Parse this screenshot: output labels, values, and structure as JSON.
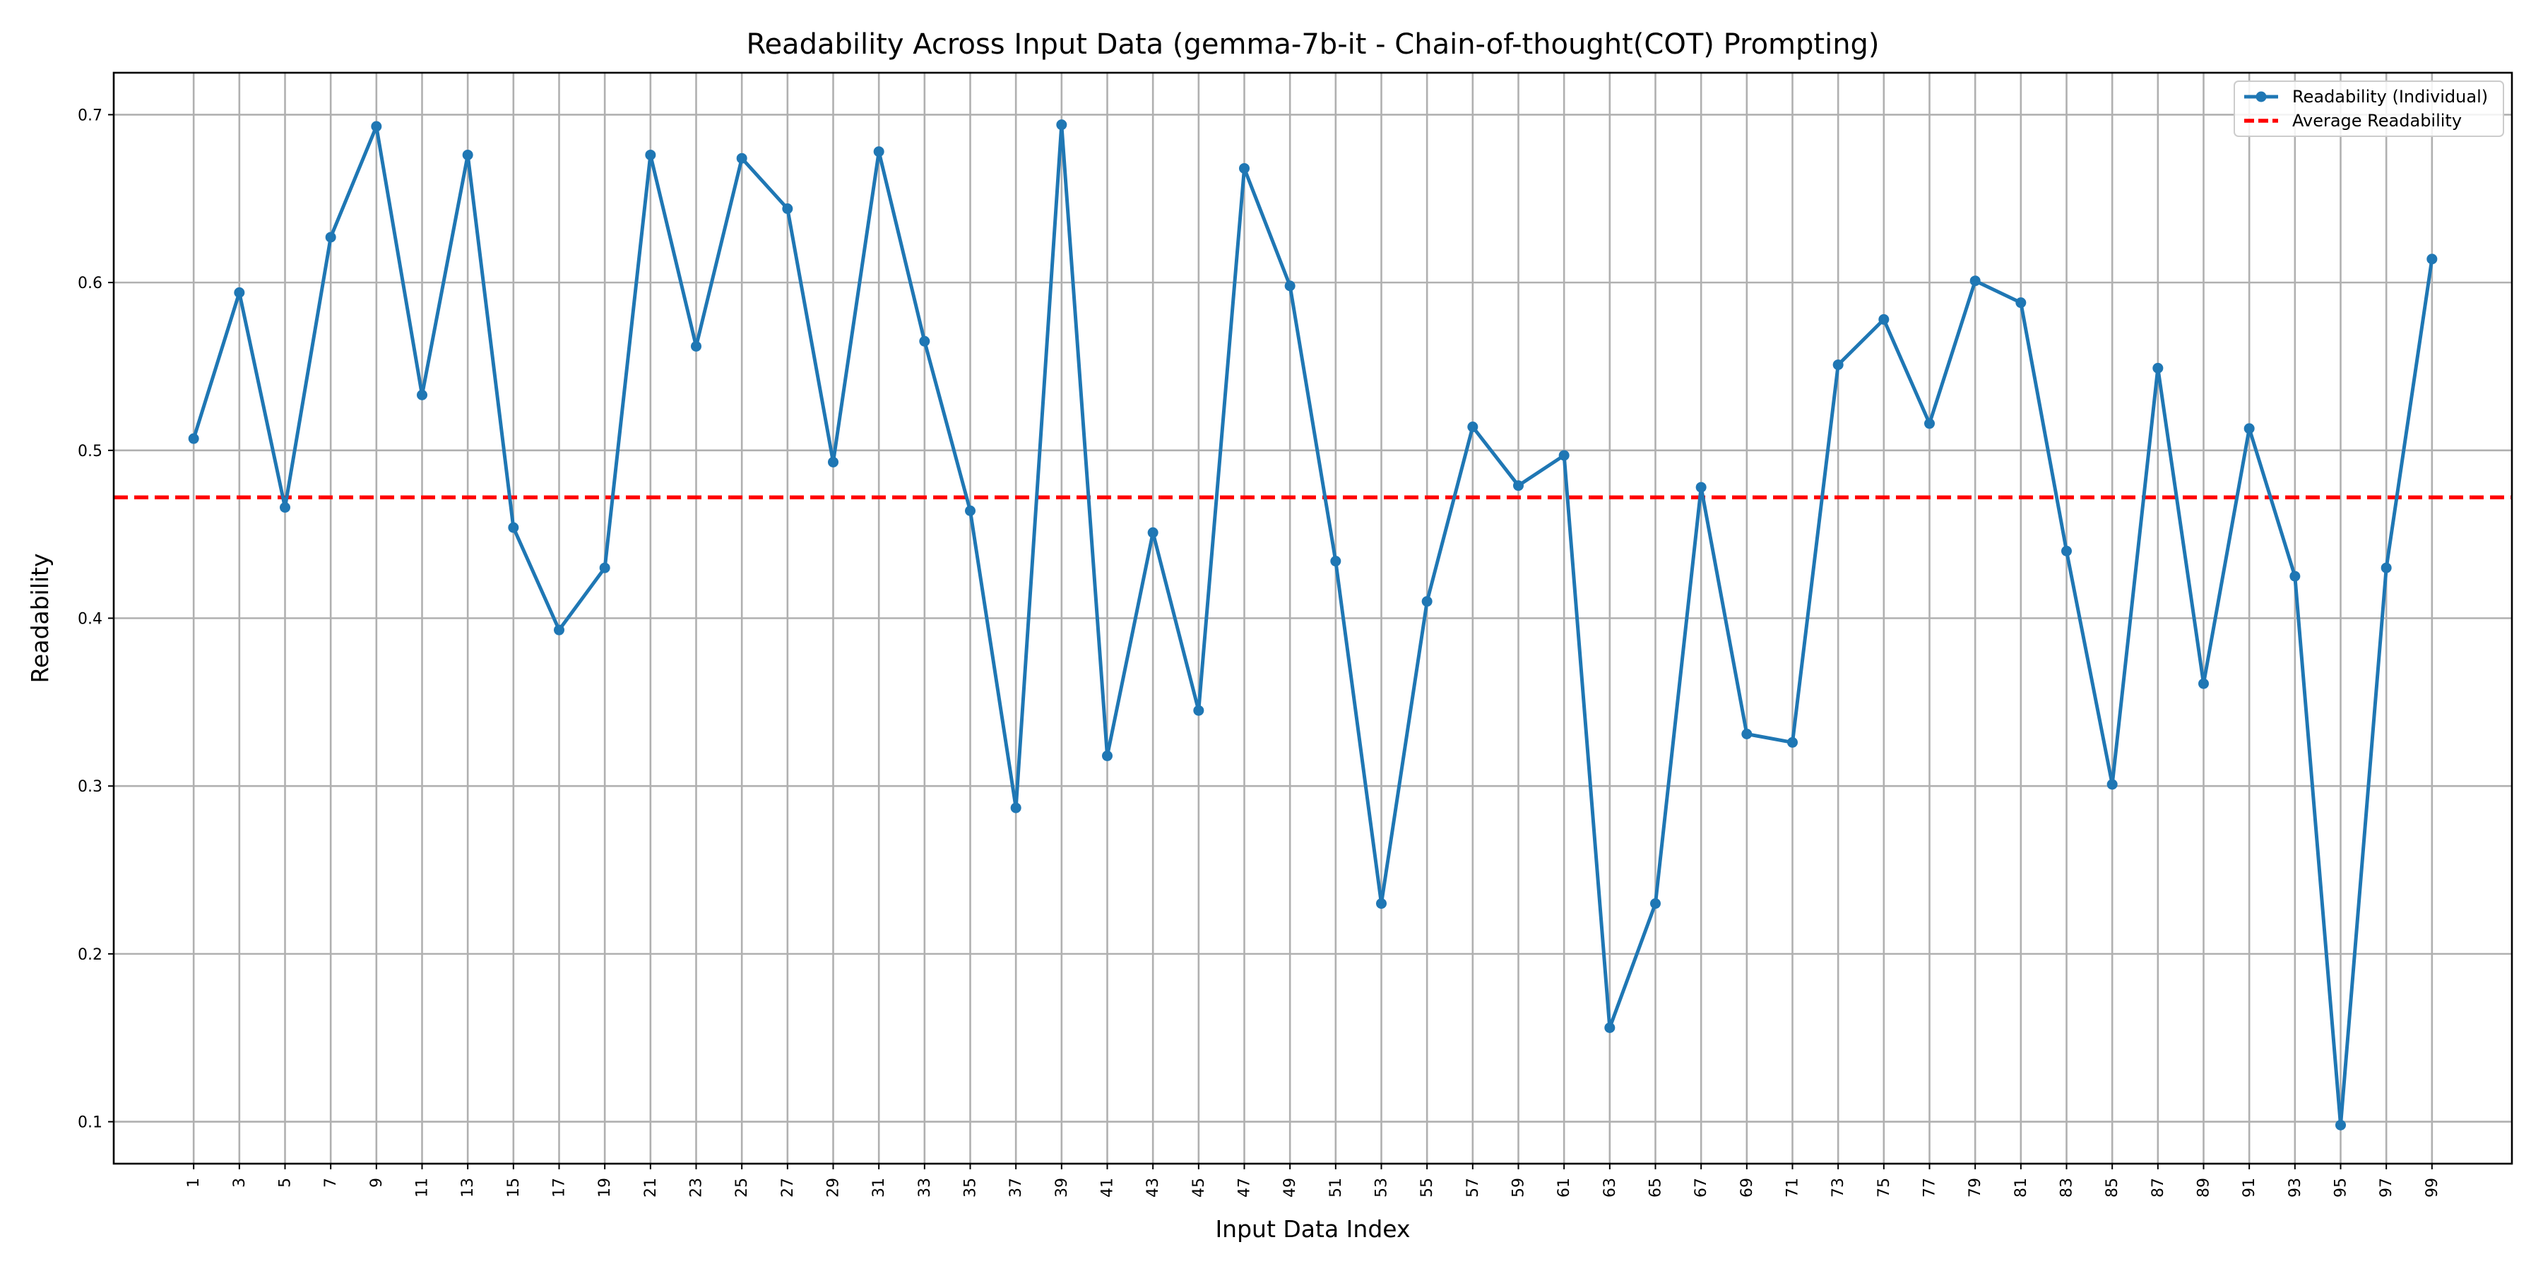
{
  "chart_data": {
    "type": "line",
    "title": "Readability Across Input Data (gemma-7b-it - Chain-of-thought(COT) Prompting)",
    "xlabel": "Input Data Index",
    "ylabel": "Readability",
    "x": [
      1,
      3,
      5,
      7,
      9,
      11,
      13,
      15,
      17,
      19,
      21,
      23,
      25,
      27,
      29,
      31,
      33,
      35,
      37,
      39,
      41,
      43,
      45,
      47,
      49,
      51,
      53,
      55,
      57,
      59,
      61,
      63,
      65,
      67,
      69,
      71,
      73,
      75,
      77,
      79,
      81,
      83,
      85,
      87,
      89,
      91,
      93,
      95,
      97,
      99
    ],
    "x_tick_labels": [
      "1",
      "3",
      "5",
      "7",
      "9",
      "11",
      "13",
      "15",
      "17",
      "19",
      "21",
      "23",
      "25",
      "27",
      "29",
      "31",
      "33",
      "35",
      "37",
      "39",
      "41",
      "43",
      "45",
      "47",
      "49",
      "51",
      "53",
      "55",
      "57",
      "59",
      "61",
      "63",
      "65",
      "67",
      "69",
      "71",
      "73",
      "75",
      "77",
      "79",
      "81",
      "83",
      "85",
      "87",
      "89",
      "91",
      "93",
      "95",
      "97",
      "99"
    ],
    "series": [
      {
        "name": "Readability (Individual)",
        "color": "#1f77b4",
        "style": "line-with-circle-markers",
        "values": [
          0.507,
          0.594,
          0.466,
          0.627,
          0.693,
          0.533,
          0.676,
          0.454,
          0.393,
          0.43,
          0.676,
          0.562,
          0.674,
          0.644,
          0.493,
          0.678,
          0.565,
          0.464,
          0.287,
          0.694,
          0.318,
          0.451,
          0.345,
          0.668,
          0.598,
          0.434,
          0.23,
          0.41,
          0.514,
          0.479,
          0.497,
          0.156,
          0.23,
          0.478,
          0.331,
          0.326,
          0.551,
          0.578,
          0.516,
          0.601,
          0.588,
          0.44,
          0.301,
          0.549,
          0.361,
          0.513,
          0.425,
          0.098,
          0.43,
          0.614
        ]
      },
      {
        "name": "Average Readability",
        "color": "#ff0000",
        "style": "dashed-horizontal",
        "value": 0.472
      }
    ],
    "xlim": [
      -2.5,
      102.5
    ],
    "ylim": [
      0.075,
      0.725
    ],
    "y_ticks": [
      0.1,
      0.2,
      0.3,
      0.4,
      0.5,
      0.6,
      0.7
    ],
    "y_tick_labels": [
      "0.1",
      "0.2",
      "0.3",
      "0.4",
      "0.5",
      "0.6",
      "0.7"
    ],
    "grid": true,
    "legend_position": "top-right"
  }
}
